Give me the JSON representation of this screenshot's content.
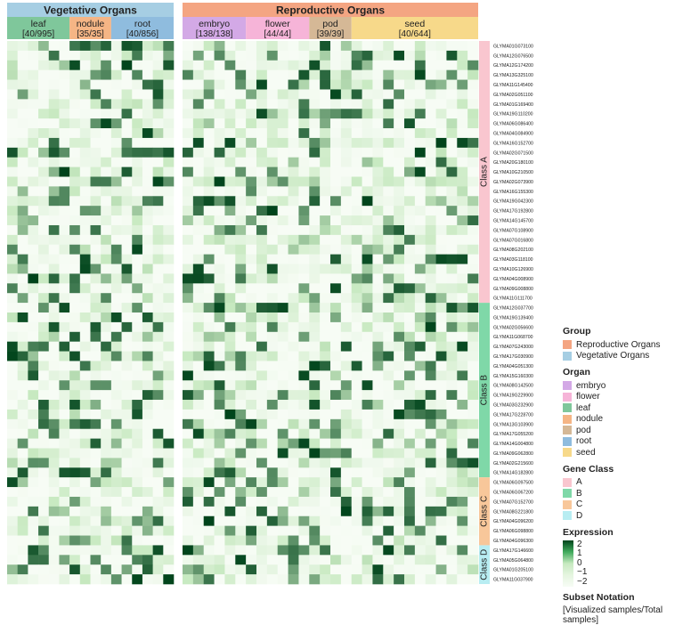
{
  "header": {
    "groups": [
      {
        "label": "Vegetative Organs",
        "color": "#a6cee3"
      },
      {
        "label": "Reproductive Organs",
        "color": "#f4a582"
      }
    ],
    "organs": [
      {
        "name": "leaf",
        "count": "[40/995]",
        "color": "#7fc79b"
      },
      {
        "name": "nodule",
        "count": "[35/35]",
        "color": "#f5b585"
      },
      {
        "name": "root",
        "count": "[40/856]",
        "color": "#8fbcde"
      },
      {
        "name": "embryo",
        "count": "[138/138]",
        "color": "#d3a9e6"
      },
      {
        "name": "flower",
        "count": "[44/44]",
        "color": "#f6b4d8"
      },
      {
        "name": "pod",
        "count": "[39/39]",
        "color": "#d5b896"
      },
      {
        "name": "seed",
        "count": "[40/644]",
        "color": "#f7d98a"
      }
    ]
  },
  "chart_data": {
    "type": "heatmap",
    "color_scale": {
      "low": -2,
      "high": 2,
      "low_color": "#f7fcf5",
      "high_color": "#00441b"
    },
    "columns_per_organ": {
      "leaf": 6,
      "nodule": 4,
      "root": 6,
      "embryo": 6,
      "flower": 6,
      "pod": 4,
      "seed": 12
    },
    "genes": [
      "GLYMA01G073100",
      "GLYMA12G076500",
      "GLYMA12G174200",
      "GLYMA13G325100",
      "GLYMA11G145400",
      "GLYMA02G051100",
      "GLYMA01G169400",
      "GLYMA19G110200",
      "GLYMA06G086400",
      "GLYMA04G084900",
      "GLYMA16G152700",
      "GLYMA02G071500",
      "GLYMA20G180100",
      "GLYMA10G210500",
      "GLYMA02G073900",
      "GLYMA16G155300",
      "GLYMA19G042300",
      "GLYMA17G192800",
      "GLYMA14G145700",
      "GLYMA07G108900",
      "GLYMA07G016800",
      "GLYMA08G202100",
      "GLYMA03G118100",
      "GLYMA10G126900",
      "GLYMA04G008900",
      "GLYMA09G008800",
      "GLYMA11G111700",
      "GLYMA12G037700",
      "GLYMA19G139400",
      "GLYMA02G056600",
      "GLYMA11G068700",
      "GLYMA07G243000",
      "GLYMA17G030900",
      "GLYMA04G051300",
      "GLYMA15G160300",
      "GLYMA08G142500",
      "GLYMA19G229900",
      "GLYMA03G232900",
      "GLYMA17G228700",
      "GLYMA13G103900",
      "GLYMA17G055200",
      "GLYMA14G004800",
      "GLYMA09G062800",
      "GLYMA02G215600",
      "GLYMA14G182800",
      "GLYMA06G097500",
      "GLYMA06G067200",
      "GLYMA07G152700",
      "GLYMA08G221800",
      "GLYMA04G096200",
      "GLYMA06G098800",
      "GLYMA04G096300",
      "GLYMA17G146600",
      "GLYMA05G064800",
      "GLYMA01G205100",
      "GLYMA11G037900"
    ],
    "gene_classes": [
      {
        "label": "A",
        "row_label": "Class A",
        "count": 27,
        "color": "#f9c6cf"
      },
      {
        "label": "B",
        "row_label": "Class B",
        "count": 18,
        "color": "#7fd8a8"
      },
      {
        "label": "C",
        "row_label": "Class C",
        "count": 7,
        "color": "#f8c79a"
      },
      {
        "label": "D",
        "row_label": "Class D",
        "count": 4,
        "color": "#b8edf2"
      }
    ]
  },
  "legend": {
    "group_title": "Group",
    "groups": [
      {
        "label": "Reproductive Organs",
        "color": "#f4a582"
      },
      {
        "label": "Vegetative Organs",
        "color": "#a6cee3"
      }
    ],
    "organ_title": "Organ",
    "organs": [
      {
        "label": "embryo",
        "color": "#d3a9e6"
      },
      {
        "label": "flower",
        "color": "#f6b4d8"
      },
      {
        "label": "leaf",
        "color": "#7fc79b"
      },
      {
        "label": "nodule",
        "color": "#f5b585"
      },
      {
        "label": "pod",
        "color": "#d5b896"
      },
      {
        "label": "root",
        "color": "#8fbcde"
      },
      {
        "label": "seed",
        "color": "#f7d98a"
      }
    ],
    "class_title": "Gene Class",
    "classes": [
      {
        "label": "A",
        "color": "#f9c6cf"
      },
      {
        "label": "B",
        "color": "#7fd8a8"
      },
      {
        "label": "C",
        "color": "#f8c79a"
      },
      {
        "label": "D",
        "color": "#b8edf2"
      }
    ],
    "expression_title": "Expression",
    "expression_ticks": [
      "2",
      "1",
      "0",
      "−1",
      "−2"
    ],
    "subset_title": "Subset Notation",
    "subset_text": "[Visualized samples/Total samples]"
  }
}
